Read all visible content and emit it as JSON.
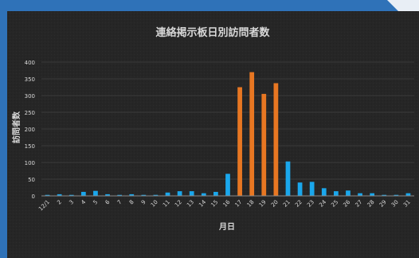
{
  "chart_data": {
    "type": "bar",
    "title": "連絡掲示板日別訪問者数",
    "xlabel": "月日",
    "ylabel": "訪問者数",
    "ylim": [
      0,
      400
    ],
    "yticks": [
      0,
      50,
      100,
      150,
      200,
      250,
      300,
      350,
      400
    ],
    "grid": true,
    "legend": "none",
    "categories": [
      "12/1",
      "2",
      "3",
      "4",
      "5",
      "6",
      "7",
      "8",
      "9",
      "10",
      "11",
      "12",
      "13",
      "14",
      "15",
      "16",
      "17",
      "18",
      "19",
      "20",
      "21",
      "22",
      "23",
      "24",
      "25",
      "26",
      "27",
      "28",
      "29",
      "30",
      "31"
    ],
    "values": [
      3,
      5,
      3,
      12,
      15,
      5,
      3,
      5,
      3,
      3,
      10,
      14,
      14,
      8,
      12,
      66,
      325,
      370,
      305,
      337,
      103,
      40,
      42,
      23,
      14,
      16,
      8,
      8,
      3,
      3,
      8
    ],
    "highlight_range": [
      16,
      19
    ],
    "colors": {
      "bar": "#1aa7ec",
      "highlight": "#e87722",
      "background": "#262626",
      "grid": "#3a3a3a",
      "text": "#d9d9d9",
      "axis": "#8a8a8a",
      "frame": "#2f72b8"
    }
  }
}
